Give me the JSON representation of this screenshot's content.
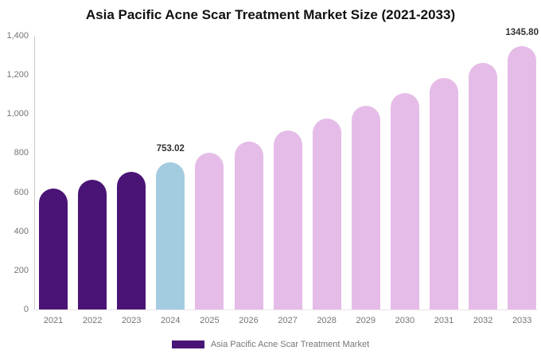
{
  "title": "Asia Pacific Acne Scar Treatment Market Size (2021-2033)",
  "legend": {
    "label": "Asia Pacific Acne Scar Treatment Market",
    "swatch_color": "#4A1477"
  },
  "colors": {
    "historical_bar": "#4A1477",
    "current_bar": "#A3CCE0",
    "forecast_bar": "#E5BCE8",
    "axis_line": "#cccccc",
    "tick_text": "#757575",
    "title_text": "#111111",
    "data_label_text": "#333333"
  },
  "chart_data": {
    "type": "bar",
    "title": "Asia Pacific Acne Scar Treatment Market Size (2021-2033)",
    "xlabel": "",
    "ylabel": "",
    "categories": [
      "2021",
      "2022",
      "2023",
      "2024",
      "2025",
      "2026",
      "2027",
      "2028",
      "2029",
      "2030",
      "2031",
      "2032",
      "2033"
    ],
    "values": [
      620,
      662,
      706,
      753.02,
      803,
      857,
      914,
      975,
      1040,
      1109,
      1183,
      1262,
      1345.8
    ],
    "point_labels": [
      "",
      "",
      "",
      "753.02",
      "",
      "",
      "",
      "",
      "",
      "",
      "",
      "",
      "1345.80"
    ],
    "segments": [
      "historical",
      "historical",
      "historical",
      "current",
      "forecast",
      "forecast",
      "forecast",
      "forecast",
      "forecast",
      "forecast",
      "forecast",
      "forecast",
      "forecast"
    ],
    "ylim": [
      0,
      1400
    ],
    "yticks": [
      0,
      200,
      400,
      600,
      800,
      1000,
      1200,
      1400
    ],
    "ytick_labels": [
      "0",
      "200",
      "400",
      "600",
      "800",
      "1,000",
      "1,200",
      "1,400"
    ],
    "grid": false,
    "legend_position": "bottom",
    "legend_entries": [
      "Asia Pacific Acne Scar Treatment Market"
    ]
  }
}
